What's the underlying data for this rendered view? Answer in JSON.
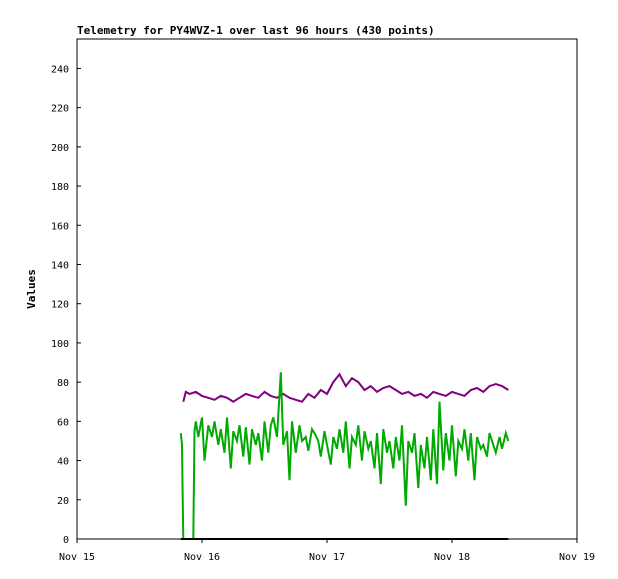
{
  "chart_data": {
    "type": "line",
    "title": "Telemetry for PY4WVZ-1 over last 96 hours (430 points)",
    "xlabel": "",
    "ylabel": "Values",
    "x_ticks": [
      "Nov 15",
      "Nov 16",
      "Nov 17",
      "Nov 18",
      "Nov 19"
    ],
    "y_ticks": [
      0,
      20,
      40,
      60,
      80,
      100,
      120,
      140,
      160,
      180,
      200,
      220,
      240
    ],
    "xlim": [
      0,
      4
    ],
    "ylim": [
      0,
      255
    ],
    "grid": false,
    "series": [
      {
        "color": "#800080",
        "x": [
          0.85,
          0.87,
          0.9,
          0.95,
          1.0,
          1.05,
          1.1,
          1.15,
          1.2,
          1.25,
          1.3,
          1.35,
          1.4,
          1.45,
          1.5,
          1.55,
          1.6,
          1.65,
          1.7,
          1.75,
          1.8,
          1.85,
          1.9,
          1.95,
          2.0,
          2.05,
          2.1,
          2.15,
          2.2,
          2.25,
          2.3,
          2.35,
          2.4,
          2.45,
          2.5,
          2.55,
          2.6,
          2.65,
          2.7,
          2.75,
          2.8,
          2.85,
          2.9,
          2.95,
          3.0,
          3.05,
          3.1,
          3.15,
          3.2,
          3.25,
          3.3,
          3.35,
          3.4,
          3.45
        ],
        "values": [
          70,
          75,
          74,
          75,
          73,
          72,
          71,
          73,
          72,
          70,
          72,
          74,
          73,
          72,
          75,
          73,
          72,
          74,
          72,
          71,
          70,
          74,
          72,
          76,
          74,
          80,
          84,
          78,
          82,
          80,
          76,
          78,
          75,
          77,
          78,
          76,
          74,
          75,
          73,
          74,
          72,
          75,
          74,
          73,
          75,
          74,
          73,
          76,
          77,
          75,
          78,
          79,
          78,
          76
        ]
      },
      {
        "color": "#00aa00",
        "x": [
          0.83,
          0.84,
          0.845,
          0.85,
          0.9,
          0.93,
          0.94,
          0.95,
          0.97,
          1.0,
          1.02,
          1.05,
          1.08,
          1.1,
          1.13,
          1.15,
          1.18,
          1.2,
          1.23,
          1.25,
          1.28,
          1.3,
          1.33,
          1.35,
          1.38,
          1.4,
          1.43,
          1.45,
          1.48,
          1.5,
          1.53,
          1.55,
          1.57,
          1.6,
          1.63,
          1.65,
          1.68,
          1.7,
          1.72,
          1.75,
          1.78,
          1.8,
          1.83,
          1.85,
          1.88,
          1.9,
          1.93,
          1.95,
          1.98,
          2.0,
          2.03,
          2.05,
          2.08,
          2.1,
          2.13,
          2.15,
          2.18,
          2.2,
          2.23,
          2.25,
          2.28,
          2.3,
          2.33,
          2.35,
          2.38,
          2.4,
          2.43,
          2.45,
          2.48,
          2.5,
          2.53,
          2.55,
          2.58,
          2.6,
          2.63,
          2.65,
          2.68,
          2.7,
          2.73,
          2.75,
          2.78,
          2.8,
          2.83,
          2.85,
          2.88,
          2.9,
          2.93,
          2.95,
          2.98,
          3.0,
          3.03,
          3.05,
          3.08,
          3.1,
          3.13,
          3.15,
          3.18,
          3.2,
          3.23,
          3.25,
          3.28,
          3.3,
          3.33,
          3.35,
          3.38,
          3.4,
          3.43,
          3.45
        ],
        "values": [
          54,
          48,
          24,
          0,
          0,
          0,
          55,
          60,
          52,
          62,
          40,
          58,
          52,
          60,
          48,
          56,
          44,
          62,
          36,
          55,
          50,
          58,
          42,
          57,
          38,
          56,
          48,
          54,
          40,
          60,
          44,
          58,
          62,
          52,
          85,
          48,
          55,
          30,
          60,
          44,
          58,
          50,
          52,
          45,
          56,
          54,
          50,
          42,
          55,
          48,
          38,
          52,
          46,
          56,
          44,
          60,
          36,
          52,
          48,
          58,
          40,
          55,
          46,
          50,
          36,
          54,
          28,
          56,
          44,
          50,
          36,
          52,
          40,
          58,
          17,
          50,
          44,
          54,
          26,
          48,
          36,
          52,
          30,
          56,
          28,
          70,
          35,
          54,
          40,
          58,
          32,
          50,
          46,
          56,
          40,
          54,
          30,
          52,
          46,
          48,
          42,
          54,
          48,
          44,
          52,
          46,
          54,
          50
        ]
      },
      {
        "color": "#000000",
        "x": [
          0.83,
          3.45
        ],
        "values": [
          0,
          0
        ]
      }
    ]
  }
}
